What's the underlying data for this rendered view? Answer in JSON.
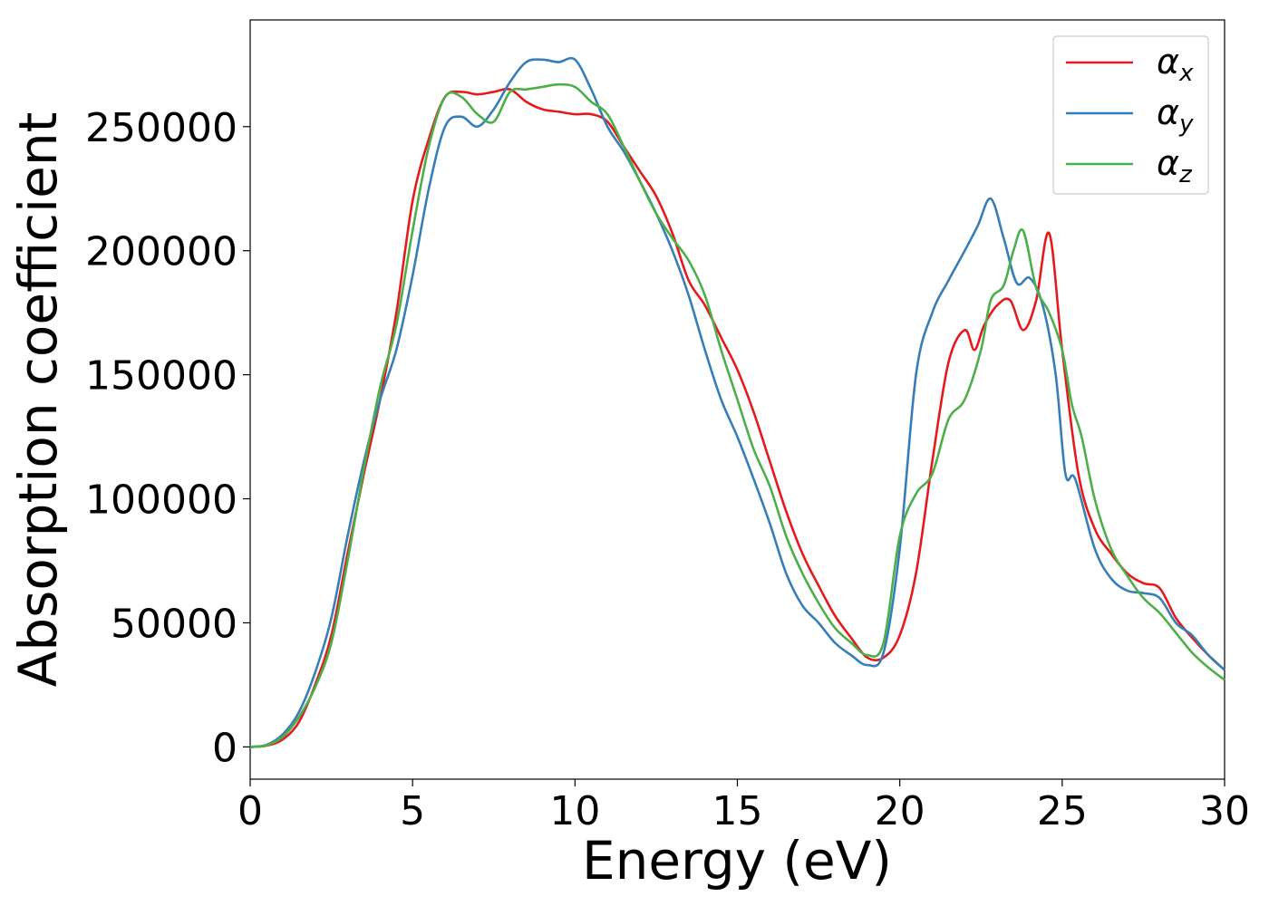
{
  "chart_data": {
    "type": "line",
    "title": "",
    "xlabel": "Energy (eV)",
    "ylabel": "Absorption coefficient",
    "xlim": [
      0,
      30
    ],
    "ylim": [
      -13000,
      293000
    ],
    "xticks": [
      0,
      5,
      10,
      15,
      20,
      25,
      30
    ],
    "yticks": [
      0,
      50000,
      100000,
      150000,
      200000,
      250000
    ],
    "grid": false,
    "legend_position": "top-right",
    "series": [
      {
        "name": "α",
        "subscript": "x",
        "color": "#e41a1c",
        "points": [
          [
            0,
            0
          ],
          [
            0.5,
            500
          ],
          [
            1,
            3000
          ],
          [
            1.5,
            10000
          ],
          [
            2,
            25000
          ],
          [
            2.5,
            45000
          ],
          [
            3,
            78000
          ],
          [
            3.5,
            110000
          ],
          [
            4,
            140000
          ],
          [
            4.5,
            175000
          ],
          [
            5,
            220000
          ],
          [
            5.5,
            245000
          ],
          [
            6,
            262000
          ],
          [
            6.5,
            264000
          ],
          [
            7,
            263000
          ],
          [
            7.5,
            264000
          ],
          [
            8,
            265000
          ],
          [
            8.5,
            260000
          ],
          [
            9,
            257000
          ],
          [
            9.5,
            256000
          ],
          [
            10,
            255000
          ],
          [
            10.5,
            255000
          ],
          [
            11,
            252000
          ],
          [
            11.5,
            242000
          ],
          [
            12,
            232000
          ],
          [
            12.5,
            222000
          ],
          [
            13,
            207000
          ],
          [
            13.5,
            188000
          ],
          [
            14,
            178000
          ],
          [
            14.5,
            165000
          ],
          [
            15,
            152000
          ],
          [
            15.5,
            135000
          ],
          [
            16,
            115000
          ],
          [
            16.5,
            95000
          ],
          [
            17,
            78000
          ],
          [
            17.5,
            65000
          ],
          [
            18,
            53000
          ],
          [
            18.5,
            44000
          ],
          [
            19,
            36000
          ],
          [
            19.5,
            36000
          ],
          [
            20,
            45000
          ],
          [
            20.5,
            70000
          ],
          [
            21,
            115000
          ],
          [
            21.5,
            155000
          ],
          [
            22,
            168000
          ],
          [
            22.3,
            160000
          ],
          [
            22.6,
            170000
          ],
          [
            23,
            178000
          ],
          [
            23.4,
            180000
          ],
          [
            23.8,
            168000
          ],
          [
            24.2,
            180000
          ],
          [
            24.6,
            207000
          ],
          [
            25,
            160000
          ],
          [
            25.5,
            110000
          ],
          [
            26,
            88000
          ],
          [
            26.5,
            78000
          ],
          [
            27,
            70000
          ],
          [
            27.5,
            66000
          ],
          [
            28,
            64000
          ],
          [
            28.5,
            52000
          ],
          [
            29,
            44000
          ],
          [
            29.5,
            37000
          ],
          [
            30,
            31000
          ]
        ]
      },
      {
        "name": "α",
        "subscript": "y",
        "color": "#377eb8",
        "points": [
          [
            0,
            0
          ],
          [
            0.5,
            800
          ],
          [
            1,
            5000
          ],
          [
            1.5,
            14000
          ],
          [
            2,
            30000
          ],
          [
            2.5,
            52000
          ],
          [
            3,
            85000
          ],
          [
            3.5,
            115000
          ],
          [
            4,
            140000
          ],
          [
            4.5,
            160000
          ],
          [
            5,
            190000
          ],
          [
            5.5,
            225000
          ],
          [
            6,
            250000
          ],
          [
            6.5,
            254000
          ],
          [
            7,
            250000
          ],
          [
            7.5,
            257000
          ],
          [
            8,
            268000
          ],
          [
            8.5,
            276000
          ],
          [
            9,
            277000
          ],
          [
            9.5,
            276000
          ],
          [
            10,
            277000
          ],
          [
            10.5,
            265000
          ],
          [
            11,
            250000
          ],
          [
            11.5,
            240000
          ],
          [
            12,
            228000
          ],
          [
            12.5,
            215000
          ],
          [
            13,
            200000
          ],
          [
            13.5,
            182000
          ],
          [
            14,
            160000
          ],
          [
            14.5,
            140000
          ],
          [
            15,
            125000
          ],
          [
            15.5,
            108000
          ],
          [
            16,
            90000
          ],
          [
            16.5,
            70000
          ],
          [
            17,
            57000
          ],
          [
            17.5,
            50000
          ],
          [
            18,
            42000
          ],
          [
            18.5,
            37000
          ],
          [
            19,
            33000
          ],
          [
            19.5,
            38000
          ],
          [
            20,
            80000
          ],
          [
            20.5,
            150000
          ],
          [
            21,
            175000
          ],
          [
            21.5,
            188000
          ],
          [
            22,
            200000
          ],
          [
            22.4,
            210000
          ],
          [
            22.8,
            221000
          ],
          [
            23.2,
            205000
          ],
          [
            23.6,
            187000
          ],
          [
            24,
            189000
          ],
          [
            24.4,
            178000
          ],
          [
            24.8,
            150000
          ],
          [
            25.1,
            110000
          ],
          [
            25.4,
            108000
          ],
          [
            26,
            80000
          ],
          [
            26.5,
            68000
          ],
          [
            27,
            63000
          ],
          [
            27.5,
            62000
          ],
          [
            28,
            60000
          ],
          [
            28.5,
            50000
          ],
          [
            29,
            45000
          ],
          [
            29.5,
            37000
          ],
          [
            30,
            31000
          ]
        ]
      },
      {
        "name": "α",
        "subscript": "z",
        "color": "#4daf4a",
        "points": [
          [
            0,
            0
          ],
          [
            0.5,
            600
          ],
          [
            1,
            4000
          ],
          [
            1.5,
            12000
          ],
          [
            2,
            24000
          ],
          [
            2.5,
            42000
          ],
          [
            3,
            75000
          ],
          [
            3.5,
            112000
          ],
          [
            4,
            145000
          ],
          [
            4.5,
            170000
          ],
          [
            5,
            208000
          ],
          [
            5.5,
            242000
          ],
          [
            6,
            262000
          ],
          [
            6.5,
            262000
          ],
          [
            7,
            255000
          ],
          [
            7.5,
            252000
          ],
          [
            8,
            264000
          ],
          [
            8.5,
            265000
          ],
          [
            9,
            266000
          ],
          [
            9.5,
            267000
          ],
          [
            10,
            266000
          ],
          [
            10.5,
            260000
          ],
          [
            11,
            255000
          ],
          [
            11.5,
            242000
          ],
          [
            12,
            228000
          ],
          [
            12.5,
            215000
          ],
          [
            13,
            205000
          ],
          [
            13.5,
            196000
          ],
          [
            14,
            182000
          ],
          [
            14.5,
            160000
          ],
          [
            15,
            140000
          ],
          [
            15.5,
            120000
          ],
          [
            16,
            105000
          ],
          [
            16.5,
            85000
          ],
          [
            17,
            70000
          ],
          [
            17.5,
            58000
          ],
          [
            18,
            48000
          ],
          [
            18.5,
            42000
          ],
          [
            19,
            37000
          ],
          [
            19.5,
            42000
          ],
          [
            20,
            85000
          ],
          [
            20.5,
            102000
          ],
          [
            21,
            110000
          ],
          [
            21.5,
            132000
          ],
          [
            22,
            140000
          ],
          [
            22.5,
            160000
          ],
          [
            22.8,
            180000
          ],
          [
            23.2,
            186000
          ],
          [
            23.5,
            200000
          ],
          [
            23.8,
            208000
          ],
          [
            24.2,
            185000
          ],
          [
            24.6,
            175000
          ],
          [
            25,
            160000
          ],
          [
            25.3,
            138000
          ],
          [
            25.6,
            125000
          ],
          [
            26,
            100000
          ],
          [
            26.5,
            80000
          ],
          [
            27,
            69000
          ],
          [
            27.5,
            60000
          ],
          [
            28,
            54000
          ],
          [
            28.5,
            46000
          ],
          [
            29,
            38000
          ],
          [
            29.5,
            32000
          ],
          [
            30,
            27000
          ]
        ]
      }
    ]
  }
}
